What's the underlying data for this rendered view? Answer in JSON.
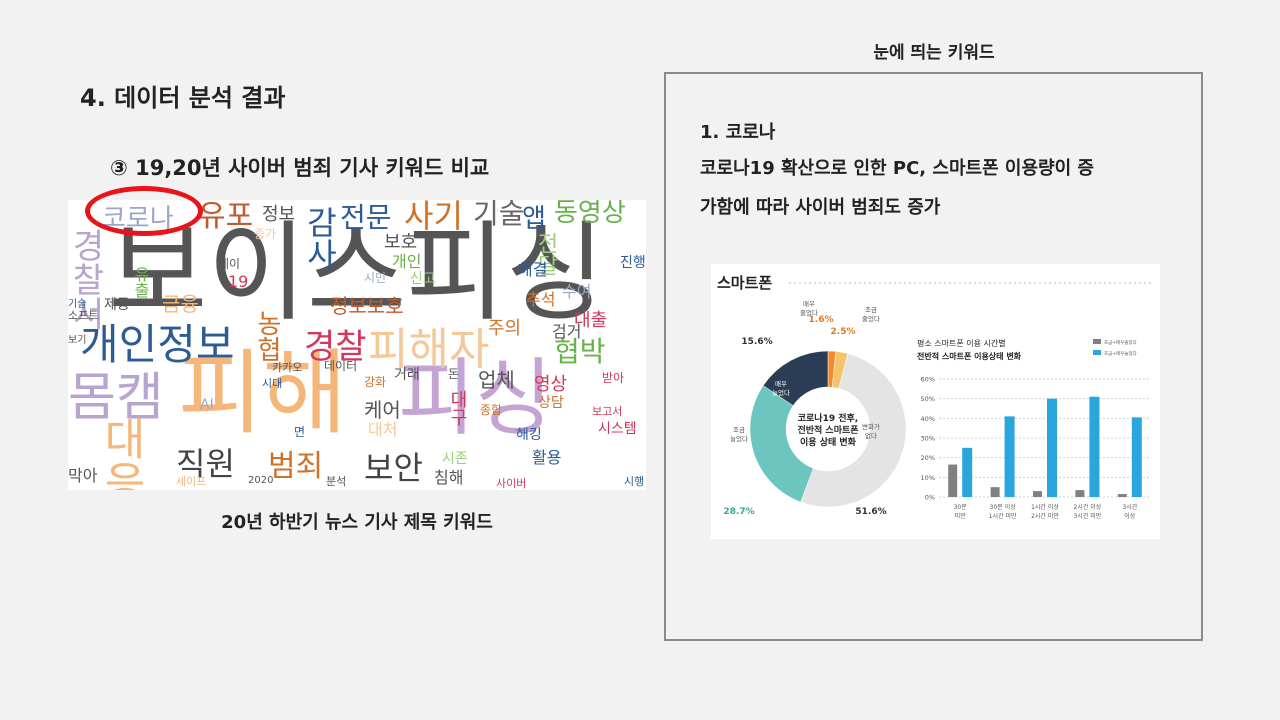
{
  "slide": {
    "title": "4. 데이터 분석 결과",
    "subtitle": "③ 19,20년 사이버 범죄 기사 키워드 비교",
    "cloud_caption": "20년 하반기 뉴스 기사 제목 키워드",
    "right_heading": "눈에 띄는 키워드",
    "keyword_title": "1. 코로나",
    "keyword_line1": "코로나19 확산으로 인한 PC, 스마트폰 이용량이 증",
    "keyword_line2": "가함에 따라 사이버 범죄도 증가"
  },
  "wordcloud": {
    "words": [
      {
        "text": "보이스피싱",
        "color": "#555555"
      },
      {
        "text": "피해",
        "color": "#f5b67a"
      },
      {
        "text": "피싱",
        "color": "#c3a4d2"
      },
      {
        "text": "몸캠",
        "color": "#b8a5cf"
      },
      {
        "text": "개인정보",
        "color": "#2c5b96"
      },
      {
        "text": "피해자",
        "color": "#f5c89a"
      },
      {
        "text": "코로나",
        "color": "#9ba7c9"
      },
      {
        "text": "유포",
        "color": "#c0592c"
      },
      {
        "text": "사기",
        "color": "#d07128"
      },
      {
        "text": "기술",
        "color": "#666666"
      },
      {
        "text": "동영상",
        "color": "#67b24a"
      },
      {
        "text": "전문",
        "color": "#2c5b96"
      },
      {
        "text": "경찰",
        "color": "#d4365c"
      },
      {
        "text": "범죄",
        "color": "#d07128"
      },
      {
        "text": "직원",
        "color": "#444444"
      },
      {
        "text": "보안",
        "color": "#444444"
      },
      {
        "text": "정보보호",
        "color": "#c0592c"
      },
      {
        "text": "협박",
        "color": "#67b24a"
      },
      {
        "text": "대출",
        "color": "#d4365c"
      },
      {
        "text": "영상",
        "color": "#d4365c"
      },
      {
        "text": "농협",
        "color": "#d07128"
      },
      {
        "text": "감사",
        "color": "#2c5b96"
      },
      {
        "text": "경찰서",
        "color": "#b8a5cf"
      },
      {
        "text": "대응",
        "color": "#f5b67a"
      },
      {
        "text": "금융",
        "color": "#f5b67a"
      },
      {
        "text": "정보",
        "color": "#555555"
      },
      {
        "text": "보호",
        "color": "#555555"
      },
      {
        "text": "개인",
        "color": "#67b24a"
      },
      {
        "text": "전달",
        "color": "#9ccf7a"
      },
      {
        "text": "해결",
        "color": "#2c5b96"
      },
      {
        "text": "진행",
        "color": "#2c5b96"
      },
      {
        "text": "추석",
        "color": "#d07128"
      },
      {
        "text": "수여",
        "color": "#9ba7c9"
      },
      {
        "text": "주의",
        "color": "#d07128"
      },
      {
        "text": "검거",
        "color": "#555555"
      },
      {
        "text": "업체",
        "color": "#555555"
      },
      {
        "text": "상담",
        "color": "#d07128"
      },
      {
        "text": "케어",
        "color": "#555555"
      },
      {
        "text": "대처",
        "color": "#f5c89a"
      },
      {
        "text": "대구",
        "color": "#d4365c"
      },
      {
        "text": "종합",
        "color": "#d07128"
      },
      {
        "text": "해킹",
        "color": "#2c5b96"
      },
      {
        "text": "활용",
        "color": "#2c5b96"
      },
      {
        "text": "시존",
        "color": "#9ccf7a"
      },
      {
        "text": "침해",
        "color": "#555555"
      },
      {
        "text": "사이버",
        "color": "#d4365c"
      },
      {
        "text": "시스템",
        "color": "#d4365c"
      },
      {
        "text": "보고서",
        "color": "#d4365c"
      },
      {
        "text": "시행",
        "color": "#2c5b96"
      },
      {
        "text": "받아",
        "color": "#d4365c"
      },
      {
        "text": "막아",
        "color": "#555555"
      },
      {
        "text": "세이프",
        "color": "#f5b67a"
      },
      {
        "text": "데이터",
        "color": "#555555"
      },
      {
        "text": "시대",
        "color": "#2c5b96"
      },
      {
        "text": "카카오",
        "color": "#555555"
      },
      {
        "text": "AI",
        "color": "#9ba7c9"
      },
      {
        "text": "2020",
        "color": "#555555"
      },
      {
        "text": "분석",
        "color": "#555555"
      },
      {
        "text": "19",
        "color": "#d4365c"
      },
      {
        "text": "데이",
        "color": "#555555"
      },
      {
        "text": "제공",
        "color": "#555555"
      },
      {
        "text": "시민",
        "color": "#9ba7c9"
      },
      {
        "text": "신고",
        "color": "#9ccf7a"
      },
      {
        "text": "증가",
        "color": "#f5c89a"
      },
      {
        "text": "기술",
        "color": "#2c5b96"
      },
      {
        "text": "소프트",
        "color": "#555555"
      },
      {
        "text": "보기",
        "color": "#555555"
      },
      {
        "text": "면",
        "color": "#2c5b96"
      },
      {
        "text": "강화",
        "color": "#d07128"
      },
      {
        "text": "거래",
        "color": "#555555"
      },
      {
        "text": "앱",
        "color": "#2c5b96"
      },
      {
        "text": "돈",
        "color": "#555555"
      },
      {
        "text": "유출",
        "color": "#67b24a"
      }
    ]
  },
  "infographic": {
    "title": "스마트폰",
    "donut": {
      "center_line1": "코로나19 전후,",
      "center_line2": "전반적 스마트폰",
      "center_line3": "이용 상태 변화",
      "segments": [
        {
          "label": "매우 줄었다",
          "value": 1.6,
          "value_label": "1.6%",
          "color": "#f08a2c"
        },
        {
          "label": "조금 줄었다",
          "value": 2.5,
          "value_label": "2.5%",
          "color": "#f6c36b"
        },
        {
          "label": "변화가 없다",
          "value": 51.6,
          "value_label": "51.6%",
          "color": "#e4e4e4"
        },
        {
          "label": "조금 늘었다",
          "value": 28.7,
          "value_label": "28.7%",
          "color": "#6dc5bf"
        },
        {
          "label": "매우 늘었다",
          "value": 15.6,
          "value_label": "15.6%",
          "color": "#2b3d55"
        }
      ]
    },
    "bar_chart": {
      "title_line1": "평소 스마트폰 이용 시간별",
      "title_line2": "전반적 스마트폰 이용상태 변화",
      "legend": [
        "조금+매우줄었다",
        "조금+매우늘었다"
      ],
      "series_colors": [
        "#808080",
        "#2aa6df"
      ],
      "categories": [
        "30분 미만",
        "30분 이상 1시간 미만",
        "1시간 이상 2시간 미만",
        "2시간 이상 3시간 미만",
        "3시간 이상"
      ],
      "category_lines": [
        [
          "30분",
          "미만"
        ],
        [
          "30분 이상",
          "1시간 미만"
        ],
        [
          "1시간 이상",
          "2시간 미만"
        ],
        [
          "2시간 이상",
          "3시간 미만"
        ],
        [
          "3시간",
          "이상"
        ]
      ],
      "series": [
        {
          "name": "조금+매우줄었다",
          "values": [
            16.5,
            5,
            3,
            3.5,
            1.5
          ]
        },
        {
          "name": "조금+매우늘었다",
          "values": [
            25,
            41,
            50,
            51,
            40.5
          ]
        }
      ],
      "ylim": [
        0,
        60
      ],
      "y_ticks": [
        "0%",
        "10%",
        "20%",
        "30%",
        "40%",
        "50%",
        "60%"
      ]
    }
  }
}
